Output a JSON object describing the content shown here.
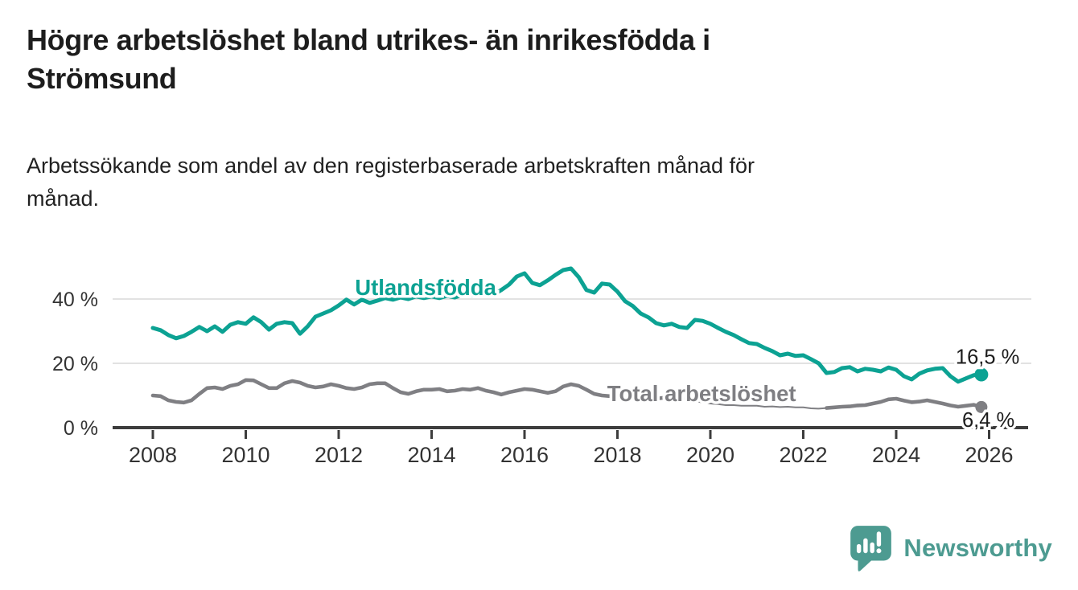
{
  "header": {
    "title_lines": [
      "Högre arbetslöshet bland utrikes- än inrikesfödda i",
      "Strömsund"
    ],
    "subtitle_lines": [
      "Arbetssökande som andel av den registerbaserade arbetskraften månad för",
      "månad."
    ]
  },
  "footer": {
    "brand": "Newsworthy",
    "logo_icon": "bar-chart-speech-bubble-icon"
  },
  "colors": {
    "foreign_born": "#0ca293",
    "total": "#7f7f83",
    "axis": "#3d3d3d",
    "grid": "#d9d9d9",
    "tick_text": "#333333",
    "value_text": "#1c1c1c",
    "brand": "#4d9b91",
    "background": "#ffffff"
  },
  "chart_data": {
    "type": "line",
    "title": "Högre arbetslöshet bland utrikes- än inrikesfödda i Strömsund",
    "subtitle": "Arbetssökande som andel av den registerbaserade arbetskraften månad för månad.",
    "unit": "%",
    "x_start_year": 2008,
    "x_step_months": 2,
    "xlim": [
      2007.1,
      2026.9
    ],
    "ylim": [
      0,
      52
    ],
    "grid": "horizontal",
    "legend_position": "inline-labels",
    "x_ticks": [
      2008,
      2010,
      2012,
      2014,
      2016,
      2018,
      2020,
      2022,
      2024,
      2026
    ],
    "y_ticks": [
      {
        "value": 0,
        "label": "0 %"
      },
      {
        "value": 20,
        "label": "20 %"
      },
      {
        "value": 40,
        "label": "40 %"
      }
    ],
    "series": [
      {
        "name": "Utlandsfödda",
        "color_key": "foreign_born",
        "end_label": "16,5 %",
        "end_value": 16.5,
        "label_anchor": {
          "year": 2012.35,
          "value": 41.2
        },
        "end_label_anchor": {
          "year": 2025.28,
          "value": 19.9
        },
        "values": [
          31.0,
          30.3,
          28.8,
          27.8,
          28.5,
          29.8,
          31.3,
          30.0,
          31.5,
          29.8,
          32.0,
          32.8,
          32.3,
          34.3,
          32.8,
          30.5,
          32.3,
          32.8,
          32.5,
          29.2,
          31.5,
          34.5,
          35.5,
          36.5,
          38.0,
          39.8,
          38.3,
          39.8,
          38.8,
          39.5,
          40.3,
          39.8,
          40.5,
          40.0,
          40.8,
          40.3,
          40.8,
          40.3,
          41.0,
          40.5,
          41.3,
          41.0,
          41.5,
          42.0,
          41.3,
          42.8,
          44.5,
          47.0,
          48.0,
          45.0,
          44.3,
          45.8,
          47.5,
          49.0,
          49.5,
          46.8,
          42.8,
          42.0,
          44.8,
          44.5,
          42.3,
          39.3,
          37.8,
          35.5,
          34.3,
          32.5,
          31.8,
          32.3,
          31.3,
          31.0,
          33.5,
          33.2,
          32.3,
          31.0,
          29.8,
          28.8,
          27.5,
          26.3,
          26.0,
          24.8,
          23.8,
          22.5,
          23.0,
          22.3,
          22.5,
          21.3,
          20.0,
          17.0,
          17.3,
          18.5,
          18.8,
          17.5,
          18.3,
          18.0,
          17.5,
          18.7,
          18.0,
          16.0,
          15.0,
          16.8,
          17.8,
          18.3,
          18.5,
          16.0,
          14.3,
          15.3,
          16.3,
          16.5
        ]
      },
      {
        "name": "Total arbetslöshet",
        "color_key": "total",
        "end_label": "6,4 %",
        "end_value": 6.4,
        "label_anchor": {
          "year": 2017.78,
          "value": 8.3
        },
        "end_label_anchor": {
          "year": 2025.42,
          "value": 0.3
        },
        "thin_segment": {
          "from_year": 2019.8,
          "to_year": 2022.4
        },
        "values": [
          10.0,
          9.8,
          8.5,
          8.0,
          7.8,
          8.5,
          10.5,
          12.3,
          12.5,
          12.0,
          13.0,
          13.5,
          14.8,
          14.7,
          13.5,
          12.3,
          12.3,
          13.8,
          14.5,
          14.0,
          13.0,
          12.5,
          12.8,
          13.5,
          13.0,
          12.3,
          12.0,
          12.5,
          13.5,
          13.8,
          13.8,
          12.3,
          11.0,
          10.5,
          11.3,
          11.8,
          11.8,
          12.0,
          11.3,
          11.5,
          12.0,
          11.8,
          12.3,
          11.5,
          11.0,
          10.3,
          11.0,
          11.5,
          12.0,
          11.8,
          11.3,
          10.8,
          11.3,
          12.8,
          13.5,
          13.0,
          11.8,
          10.5,
          10.0,
          9.8,
          10.0,
          10.3,
          10.0,
          9.5,
          9.3,
          9.0,
          9.3,
          9.5,
          9.0,
          8.8,
          8.3,
          7.8,
          7.5,
          7.3,
          7.0,
          7.0,
          6.8,
          6.8,
          6.8,
          6.5,
          6.6,
          6.4,
          6.5,
          6.3,
          6.3,
          6.0,
          5.9,
          6.1,
          6.3,
          6.5,
          6.6,
          6.9,
          7.0,
          7.5,
          8.0,
          8.8,
          9.0,
          8.4,
          7.9,
          8.1,
          8.5,
          8.0,
          7.5,
          6.9,
          6.5,
          6.8,
          7.1,
          6.4
        ]
      }
    ]
  }
}
